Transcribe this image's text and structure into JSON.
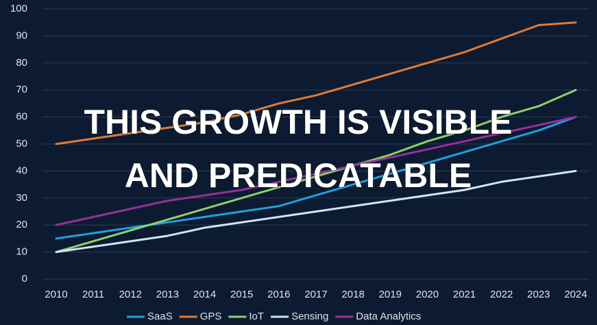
{
  "chart_data": {
    "type": "line",
    "categories": [
      "2010",
      "2011",
      "2012",
      "2013",
      "2014",
      "2015",
      "2016",
      "2017",
      "2018",
      "2019",
      "2020",
      "2021",
      "2022",
      "2023",
      "2024"
    ],
    "series": [
      {
        "name": "SaaS",
        "color": "#1ea1e0",
        "values": [
          15,
          17,
          19,
          21,
          23,
          25,
          27,
          31,
          35,
          39,
          43,
          47,
          51,
          55,
          60
        ]
      },
      {
        "name": "GPS",
        "color": "#e07a35",
        "values": [
          50,
          52,
          54,
          56,
          58,
          61,
          65,
          68,
          72,
          76,
          80,
          84,
          89,
          94,
          95
        ]
      },
      {
        "name": "IoT",
        "color": "#8fd16a",
        "values": [
          10,
          14,
          18,
          22,
          26,
          30,
          34,
          38,
          42,
          46,
          51,
          55,
          60,
          64,
          70
        ]
      },
      {
        "name": "Sensing",
        "color": "#cde6f5",
        "values": [
          10,
          12,
          14,
          16,
          19,
          21,
          23,
          25,
          27,
          29,
          31,
          33,
          36,
          38,
          40
        ]
      },
      {
        "name": "Data Analytics",
        "color": "#9b2f9b",
        "values": [
          20,
          23,
          26,
          29,
          31,
          33,
          36,
          39,
          42,
          45,
          48,
          51,
          54,
          57,
          60
        ]
      }
    ],
    "ylim": [
      0,
      100
    ],
    "yticks": [
      0,
      10,
      20,
      30,
      40,
      50,
      60,
      70,
      80,
      90,
      100
    ],
    "grid": true,
    "legend": "bottom",
    "annotations": [
      "THIS GROWTH IS VISIBLE",
      "AND PREDICATABLE"
    ]
  }
}
